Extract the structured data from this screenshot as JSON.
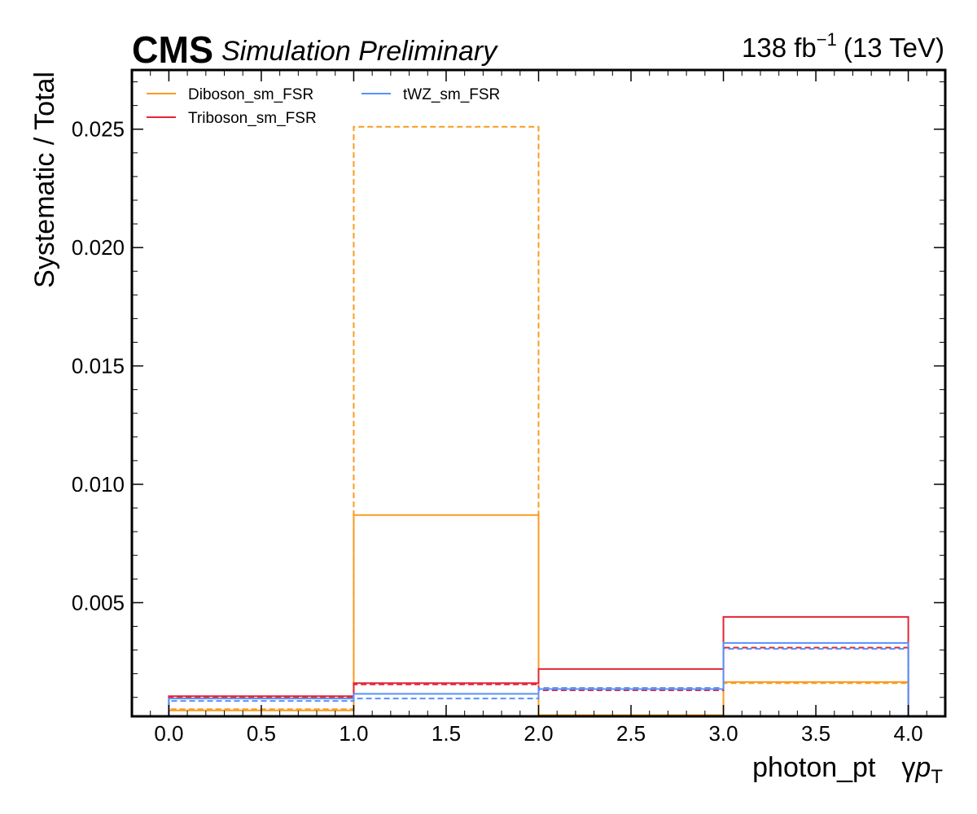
{
  "header": {
    "cms": "CMS",
    "subtitle": "Simulation Preliminary",
    "lumi_value": "138 fb",
    "lumi_exp": "−1",
    "lumi_energy": "(13 TeV)"
  },
  "chart_data": {
    "type": "line",
    "drawstyle": "step",
    "xlabel_text": "photon_pt",
    "xlabel_symbol": "γ",
    "xlabel_var": "p",
    "xlabel_sub": "T",
    "ylabel": "Systematic / Total",
    "xlim": [
      -0.2,
      4.2
    ],
    "ylim": [
      0.0002,
      0.0275
    ],
    "x_ticks": [
      0.0,
      0.5,
      1.0,
      1.5,
      2.0,
      2.5,
      3.0,
      3.5,
      4.0
    ],
    "x_tick_labels": [
      "0.0",
      "0.5",
      "1.0",
      "1.5",
      "2.0",
      "2.5",
      "3.0",
      "3.5",
      "4.0"
    ],
    "y_ticks": [
      0.005,
      0.01,
      0.015,
      0.02,
      0.025
    ],
    "y_tick_labels": [
      "0.005",
      "0.010",
      "0.015",
      "0.020",
      "0.025"
    ],
    "bin_edges": [
      0,
      1,
      2,
      3,
      4
    ],
    "legend_position": "top-left",
    "grid": false,
    "series": [
      {
        "name": "Diboson_sm_FSR",
        "color": "#f89c20",
        "style": "solid",
        "values": [
          0.00045,
          0.0087,
          0.00025,
          0.00165
        ]
      },
      {
        "name": "",
        "color": "#f89c20",
        "style": "dashed",
        "values": [
          0.0005,
          0.0251,
          0.00022,
          0.0016
        ]
      },
      {
        "name": "Triboson_sm_FSR",
        "color": "#e42536",
        "style": "solid",
        "values": [
          0.00105,
          0.0016,
          0.0022,
          0.0044
        ]
      },
      {
        "name": "",
        "color": "#e42536",
        "style": "dashed",
        "values": [
          0.001,
          0.00155,
          0.0013,
          0.0031
        ]
      },
      {
        "name": "tWZ_sm_FSR",
        "color": "#5790fc",
        "style": "solid",
        "values": [
          0.00095,
          0.00115,
          0.00135,
          0.0033
        ]
      },
      {
        "name": "",
        "color": "#5790fc",
        "style": "dashed",
        "values": [
          0.00085,
          0.00095,
          0.0014,
          0.00305
        ]
      }
    ]
  }
}
